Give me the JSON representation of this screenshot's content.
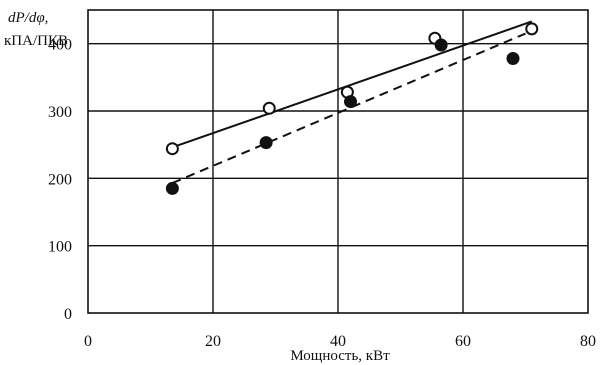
{
  "chart_data": {
    "type": "scatter",
    "ylabel_line1": "dP/dφ,",
    "ylabel_line2": "кПА/ПКВ",
    "xlabel": "Мощность, кВт",
    "xlim": [
      0,
      80
    ],
    "ylim": [
      0,
      450
    ],
    "x_ticks": [
      0,
      20,
      40,
      60,
      80
    ],
    "y_ticks": [
      0,
      100,
      200,
      300,
      400
    ],
    "grid": true,
    "series": [
      {
        "marker": "open-circle",
        "line": "solid",
        "points": [
          [
            13.5,
            244
          ],
          [
            29,
            304
          ],
          [
            41.5,
            328
          ],
          [
            55.5,
            408
          ],
          [
            71,
            422
          ]
        ],
        "fit": [
          [
            13.5,
            246
          ],
          [
            71,
            433
          ]
        ]
      },
      {
        "marker": "filled-circle",
        "line": "dashed",
        "points": [
          [
            13.5,
            185
          ],
          [
            28.5,
            253
          ],
          [
            42,
            314
          ],
          [
            56.5,
            398
          ],
          [
            68,
            378
          ]
        ],
        "fit": [
          [
            13.5,
            193
          ],
          [
            70,
            415
          ]
        ]
      }
    ]
  }
}
